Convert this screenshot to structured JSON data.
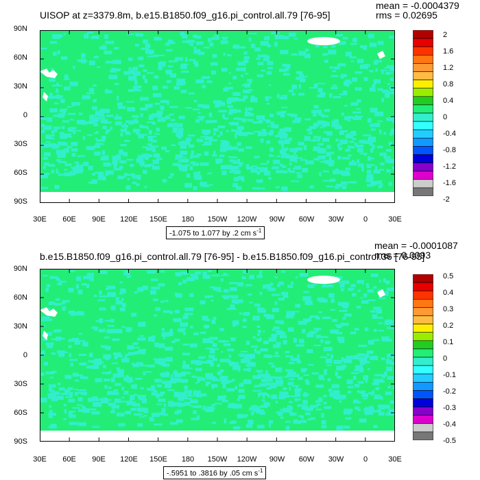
{
  "panels": [
    {
      "title": "UISOP at z=3379.8m, b.e15.B1850.f09_g16.pi_control.all.79 [76-95]",
      "mean": "mean = -0.0004379",
      "rms": "rms = 0.02695",
      "range_text": "-1.075 to 1.077 by .2 cm s",
      "range_unit_sup": "-1",
      "lat_labels": [
        "90N",
        "60N",
        "30N",
        "0",
        "30S",
        "60S",
        "90S"
      ],
      "lon_labels": [
        "30E",
        "60E",
        "90E",
        "120E",
        "150E",
        "180",
        "150W",
        "120W",
        "90W",
        "60W",
        "30W",
        "0",
        "30E"
      ],
      "colorbar_labels": [
        "2",
        "1.6",
        "1.2",
        "0.8",
        "0.4",
        "0",
        "-0.4",
        "-0.8",
        "-1.2",
        "-1.6",
        "-2"
      ]
    },
    {
      "title": "b.e15.B1850.f09_g16.pi_control.all.79 [76-95] - b.e15.B1850.f09_g16.pi_control.36 [76-95]",
      "mean": "mean = -0.0001087",
      "rms": "rms = 0.0093",
      "range_text": "-.5951 to .3816 by .05 cm s",
      "range_unit_sup": "-1",
      "lat_labels": [
        "90N",
        "60N",
        "30N",
        "0",
        "30S",
        "60S",
        "90S"
      ],
      "lon_labels": [
        "30E",
        "60E",
        "90E",
        "120E",
        "150E",
        "180",
        "150W",
        "120W",
        "90W",
        "60W",
        "30W",
        "0",
        "30E"
      ],
      "colorbar_labels": [
        "0.5",
        "0.4",
        "0.3",
        "0.2",
        "0.1",
        "0",
        "-0.1",
        "-0.2",
        "-0.3",
        "-0.4",
        "-0.5"
      ]
    }
  ],
  "colors": {
    "background_field": "#22ee77",
    "anomaly_field": "#33eecc",
    "land_missing": "#ffffff",
    "colorbar": [
      "#b00000",
      "#e80000",
      "#ff3300",
      "#ff7711",
      "#ff9933",
      "#ffbb44",
      "#ffee00",
      "#99ee00",
      "#22cc22",
      "#22ee77",
      "#33eecc",
      "#33ffff",
      "#22ccff",
      "#1199ff",
      "#0055ff",
      "#0000dd",
      "#8800cc",
      "#dd00cc",
      "#cccccc",
      "#777777"
    ]
  }
}
